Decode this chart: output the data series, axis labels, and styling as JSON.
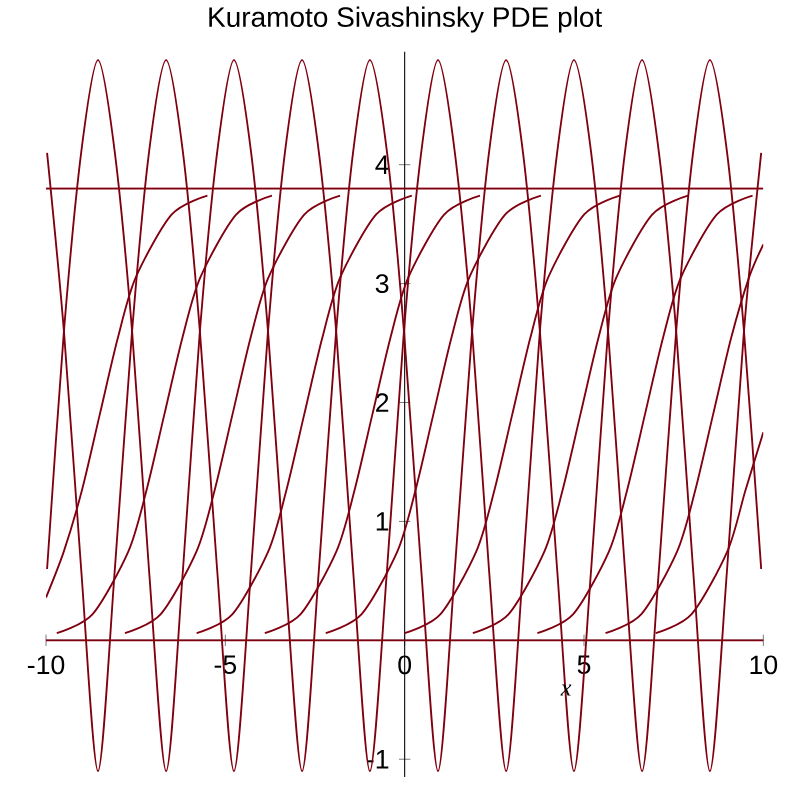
{
  "chart_data": {
    "type": "line",
    "title": "Kuramoto Sivashinsky PDE plot",
    "xlabel": "x",
    "xlim": [
      -10,
      10
    ],
    "ylim": [
      -1.15,
      4.95
    ],
    "xticks": [
      -10,
      -5,
      0,
      5,
      10
    ],
    "yticks": [
      -1,
      1,
      2,
      3,
      4
    ],
    "marker": "none",
    "line_style": "solid",
    "grid": false,
    "series": [
      {
        "color": "#800010",
        "x": [
          -9.97,
          -9.5,
          -9.02,
          -8.55,
          -8.08,
          -7.6,
          -7.13,
          -6.65,
          -6.18,
          -5.71,
          -5.23,
          -4.76,
          -4.28,
          -3.81,
          -3.34,
          -2.86,
          -2.39,
          -1.91,
          -1.44,
          -0.97,
          -0.49,
          -0.02,
          0.46,
          0.93,
          1.4,
          1.88,
          2.35,
          2.83,
          3.3,
          3.77,
          4.25,
          4.72,
          5.2,
          5.67,
          6.14,
          6.62,
          7.09,
          7.57,
          8.04,
          8.51,
          8.99,
          9.46,
          9.94
        ],
        "values": [
          0.6,
          2.6,
          4.1,
          4.88,
          4.1,
          2.6,
          0.6,
          -1.1,
          0.6,
          2.6,
          4.1,
          4.88,
          4.1,
          2.6,
          0.6,
          -1.1,
          0.6,
          2.6,
          4.1,
          4.88,
          4.1,
          2.6,
          0.6,
          -1.1,
          0.6,
          2.6,
          4.1,
          4.88,
          4.1,
          2.6,
          0.6,
          -1.1,
          0.6,
          2.6,
          4.1,
          4.88,
          4.1,
          2.6,
          0.6,
          -1.1,
          0.6,
          2.6,
          4.1
        ]
      },
      {
        "color": "#800010",
        "x": [
          -9.97,
          -9.5,
          -9.02,
          -8.55,
          -8.08,
          -7.6,
          -7.13,
          -6.65,
          -6.18,
          -5.71,
          -5.23,
          -4.76,
          -4.28,
          -3.81,
          -3.34,
          -2.86,
          -2.39,
          -1.91,
          -1.44,
          -0.97,
          -0.49,
          -0.02,
          0.46,
          0.93,
          1.4,
          1.88,
          2.35,
          2.83,
          3.3,
          3.77,
          4.25,
          4.72,
          5.2,
          5.67,
          6.14,
          6.62,
          7.09,
          7.57,
          8.04,
          8.51,
          8.99,
          9.46,
          9.94
        ],
        "values": [
          4.1,
          2.6,
          0.6,
          -1.1,
          0.6,
          2.6,
          4.1,
          4.88,
          4.1,
          2.6,
          0.6,
          -1.1,
          0.6,
          2.6,
          4.1,
          4.88,
          4.1,
          2.6,
          0.6,
          -1.1,
          0.6,
          2.6,
          4.1,
          4.88,
          4.1,
          2.6,
          0.6,
          -1.1,
          0.6,
          2.6,
          4.1,
          4.88,
          4.1,
          2.6,
          0.6,
          -1.1,
          0.6,
          2.6,
          4.1,
          4.88,
          4.1,
          2.6,
          0.6
        ]
      },
      {
        "color": "#800010",
        "x": [
          -10,
          -9.5,
          -9,
          -8.5,
          -8,
          -7.5,
          -6.5,
          -5.5
        ],
        "values": [
          0.36,
          0.75,
          1.26,
          1.9,
          2.54,
          3.05,
          3.58,
          3.74
        ]
      },
      {
        "color": "#800010",
        "x": [
          -9.7,
          -8.7,
          -7.7,
          -7.2,
          -6.7,
          -6.2,
          -5.7,
          -4.7,
          -3.7
        ],
        "values": [
          0.06,
          0.22,
          0.75,
          1.26,
          1.9,
          2.54,
          3.05,
          3.58,
          3.74
        ]
      },
      {
        "color": "#800010",
        "x": [
          -7.8,
          -6.8,
          -5.8,
          -5.3,
          -4.8,
          -4.3,
          -3.8,
          -2.8,
          -1.8
        ],
        "values": [
          0.06,
          0.22,
          0.75,
          1.26,
          1.9,
          2.54,
          3.05,
          3.58,
          3.74
        ]
      },
      {
        "color": "#800010",
        "x": [
          -5.8,
          -4.8,
          -3.8,
          -3.3,
          -2.8,
          -2.3,
          -1.8,
          -0.8,
          0.2
        ],
        "values": [
          0.06,
          0.22,
          0.75,
          1.26,
          1.9,
          2.54,
          3.05,
          3.58,
          3.74
        ]
      },
      {
        "color": "#800010",
        "x": [
          -3.9,
          -2.9,
          -1.9,
          -1.4,
          -0.9,
          -0.4,
          0.1,
          1.1,
          2.1
        ],
        "values": [
          0.06,
          0.22,
          0.75,
          1.26,
          1.9,
          2.54,
          3.05,
          3.58,
          3.74
        ]
      },
      {
        "color": "#800010",
        "x": [
          -2.2,
          -1.2,
          -0.2,
          0.3,
          0.8,
          1.3,
          1.8,
          2.8,
          3.8
        ],
        "values": [
          0.06,
          0.22,
          0.75,
          1.26,
          1.9,
          2.54,
          3.05,
          3.58,
          3.74
        ]
      },
      {
        "color": "#800010",
        "x": [
          0,
          1,
          2,
          2.5,
          3,
          3.5,
          4,
          5,
          6
        ],
        "values": [
          0.06,
          0.22,
          0.75,
          1.26,
          1.9,
          2.54,
          3.05,
          3.58,
          3.74
        ]
      },
      {
        "color": "#800010",
        "x": [
          1.9,
          2.9,
          3.9,
          4.4,
          4.9,
          5.4,
          5.9,
          6.9,
          7.9
        ],
        "values": [
          0.06,
          0.22,
          0.75,
          1.26,
          1.9,
          2.54,
          3.05,
          3.58,
          3.74
        ]
      },
      {
        "color": "#800010",
        "x": [
          3.7,
          4.7,
          5.7,
          6.2,
          6.7,
          7.2,
          7.7,
          8.7,
          9.7
        ],
        "values": [
          0.06,
          0.22,
          0.75,
          1.26,
          1.9,
          2.54,
          3.05,
          3.58,
          3.74
        ]
      },
      {
        "color": "#800010",
        "x": [
          5.6,
          6.6,
          7.6,
          8.1,
          8.6,
          9.1,
          9.6,
          10
        ],
        "values": [
          0.06,
          0.22,
          0.75,
          1.26,
          1.9,
          2.54,
          3.05,
          3.33
        ]
      },
      {
        "color": "#800010",
        "x": [
          7,
          8,
          9,
          9.5,
          10
        ],
        "values": [
          0.06,
          0.22,
          0.75,
          1.26,
          1.75
        ]
      },
      {
        "color": "#800010",
        "x": [
          -10,
          10
        ],
        "values": [
          3.8,
          3.8
        ]
      },
      {
        "color": "#800010",
        "x": [
          -10,
          10
        ],
        "values": [
          0,
          0
        ]
      }
    ]
  }
}
